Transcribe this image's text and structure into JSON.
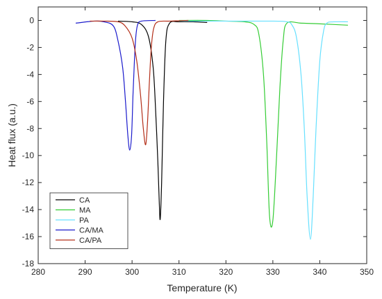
{
  "chart_data": {
    "type": "line",
    "xlabel": "Temperature (K)",
    "ylabel": "Heat flux (a.u.)",
    "xlim": [
      280,
      350
    ],
    "ylim": [
      -18,
      1
    ],
    "xticks": [
      280,
      290,
      300,
      310,
      320,
      330,
      340,
      350
    ],
    "yticks": [
      0,
      -2,
      -4,
      -6,
      -8,
      -10,
      -12,
      -14,
      -16,
      -18
    ],
    "grid": false,
    "legend_position": "bottom-left",
    "series": [
      {
        "name": "CA",
        "color": "#000000",
        "x": [
          297,
          300,
          302,
          303.5,
          304.5,
          305,
          305.5,
          305.8,
          306,
          306.3,
          306.7,
          307.2,
          308,
          310,
          313,
          316
        ],
        "y": [
          -0.05,
          -0.1,
          -0.3,
          -1.2,
          -3.5,
          -6.5,
          -10.5,
          -13.5,
          -14.7,
          -12,
          -6,
          -1.5,
          -0.2,
          -0.1,
          -0.1,
          -0.15
        ]
      },
      {
        "name": "MA",
        "color": "#33cc33",
        "x": [
          310,
          316,
          320,
          324,
          326,
          327,
          328,
          328.7,
          329.3,
          330,
          330.8,
          331.5,
          332.2,
          333,
          336,
          340,
          346
        ],
        "y": [
          0,
          0,
          -0.05,
          -0.1,
          -0.3,
          -1,
          -4,
          -9,
          -14.5,
          -14.8,
          -10,
          -5,
          -1.5,
          -0.2,
          -0.2,
          -0.25,
          -0.35
        ]
      },
      {
        "name": "PA",
        "color": "#66e0ff",
        "x": [
          310,
          320,
          330,
          333,
          334,
          335,
          336,
          336.7,
          337.3,
          338,
          338.6,
          339.2,
          340,
          340.8,
          341.5,
          343,
          346
        ],
        "y": [
          -0.05,
          -0.05,
          -0.05,
          -0.1,
          -0.3,
          -1.2,
          -4,
          -8,
          -13,
          -16.2,
          -13,
          -8,
          -3,
          -0.8,
          -0.2,
          -0.1,
          -0.1
        ]
      },
      {
        "name": "CA/MA",
        "color": "#1a1acc",
        "x": [
          288,
          292,
          294,
          296,
          297,
          298,
          298.6,
          299.1,
          299.5,
          299.9,
          300.2,
          300.5,
          300.8,
          301.2,
          302,
          305
        ],
        "y": [
          -0.2,
          -0.05,
          -0.1,
          -0.4,
          -1.5,
          -3.5,
          -6,
          -8.5,
          -9.6,
          -8.5,
          -5.5,
          -3,
          -1.2,
          -0.3,
          -0.05,
          0
        ]
      },
      {
        "name": "CA/PA",
        "color": "#b32d17",
        "x": [
          291,
          294,
          297,
          298.5,
          300,
          301,
          301.8,
          302.4,
          302.9,
          303.3,
          303.7,
          304.1,
          304.6,
          305.5,
          308,
          312
        ],
        "y": [
          -0.05,
          -0.05,
          -0.1,
          -0.4,
          -1.3,
          -3,
          -5.5,
          -8,
          -9.2,
          -7.5,
          -4.5,
          -2,
          -0.6,
          -0.1,
          -0.05,
          0
        ]
      }
    ]
  }
}
